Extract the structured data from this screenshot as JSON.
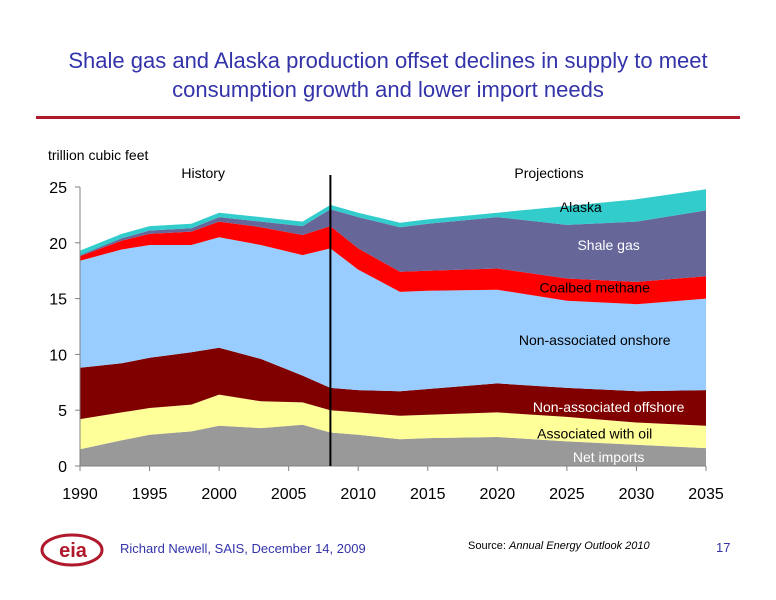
{
  "title": "Shale gas and Alaska production offset declines in supply to meet consumption growth and lower import needs",
  "footer": {
    "logo_text": "eia",
    "author": "Richard Newell, SAIS, December 14, 2009",
    "source_prefix": "Source:",
    "source_title": "Annual Energy Outlook 2010",
    "page_number": "17"
  },
  "chart_data": {
    "type": "area",
    "stacked": true,
    "ylabel": "trillion cubic feet",
    "xlim": [
      1990,
      2035
    ],
    "ylim": [
      0,
      25
    ],
    "x_ticks": [
      "1990",
      "1995",
      "2000",
      "2005",
      "2010",
      "2015",
      "2020",
      "2025",
      "2030",
      "2035"
    ],
    "y_ticks": [
      "0",
      "5",
      "10",
      "15",
      "20",
      "25"
    ],
    "grid": false,
    "divider": {
      "x": 2008,
      "left_label": "History",
      "right_label": "Projections"
    },
    "x": [
      1990,
      1993,
      1995,
      1998,
      2000,
      2003,
      2006,
      2008,
      2010,
      2013,
      2015,
      2020,
      2025,
      2030,
      2035
    ],
    "series": [
      {
        "name": "Net imports",
        "color": "#999999",
        "values": [
          1.5,
          2.3,
          2.8,
          3.1,
          3.6,
          3.4,
          3.7,
          3.0,
          2.8,
          2.4,
          2.5,
          2.6,
          2.2,
          1.9,
          1.6
        ]
      },
      {
        "name": "Associated with oil",
        "color": "#ffff99",
        "values": [
          2.7,
          2.5,
          2.4,
          2.4,
          2.8,
          2.4,
          2.0,
          2.0,
          2.0,
          2.1,
          2.1,
          2.2,
          2.2,
          2.0,
          2.0
        ]
      },
      {
        "name": "Non-associated offshore",
        "color": "#800000",
        "values": [
          4.6,
          4.4,
          4.5,
          4.7,
          4.2,
          3.8,
          2.4,
          2.0,
          2.0,
          2.2,
          2.3,
          2.6,
          2.6,
          2.8,
          3.2
        ]
      },
      {
        "name": "Non-associated onshore",
        "color": "#99ccff",
        "values": [
          9.6,
          10.2,
          10.1,
          9.6,
          9.9,
          10.2,
          10.8,
          12.5,
          10.8,
          8.9,
          8.8,
          8.4,
          7.8,
          7.8,
          8.2
        ]
      },
      {
        "name": "Coalbed methane",
        "color": "#ff0000",
        "values": [
          0.4,
          0.8,
          1.0,
          1.2,
          1.4,
          1.6,
          1.8,
          2.0,
          1.9,
          1.8,
          1.8,
          1.9,
          2.0,
          2.0,
          2.0
        ]
      },
      {
        "name": "Shale gas",
        "color": "#666699",
        "values": [
          0.1,
          0.2,
          0.3,
          0.3,
          0.4,
          0.5,
          0.8,
          1.5,
          2.8,
          4.0,
          4.2,
          4.6,
          4.8,
          5.4,
          5.9
        ]
      },
      {
        "name": "Alaska",
        "color": "#33cccc",
        "values": [
          0.4,
          0.4,
          0.4,
          0.4,
          0.4,
          0.4,
          0.4,
          0.4,
          0.4,
          0.4,
          0.4,
          0.4,
          1.7,
          2.0,
          1.9
        ]
      }
    ],
    "series_labels": [
      {
        "text": "Alaska",
        "x": 2026,
        "y": 23.2,
        "color": "#000000"
      },
      {
        "text": "Shale gas",
        "x": 2028,
        "y": 19.8,
        "color": "#ffffff"
      },
      {
        "text": "Coalbed methane",
        "x": 2027,
        "y": 16.0,
        "color": "#000000"
      },
      {
        "text": "Non-associated onshore",
        "x": 2027,
        "y": 11.3,
        "color": "#000000"
      },
      {
        "text": "Non-associated offshore",
        "x": 2028,
        "y": 5.3,
        "color": "#ffffff"
      },
      {
        "text": "Associated with oil",
        "x": 2027,
        "y": 2.9,
        "color": "#000000"
      },
      {
        "text": "Net imports",
        "x": 2028,
        "y": 0.8,
        "color": "#ffffff"
      }
    ]
  }
}
